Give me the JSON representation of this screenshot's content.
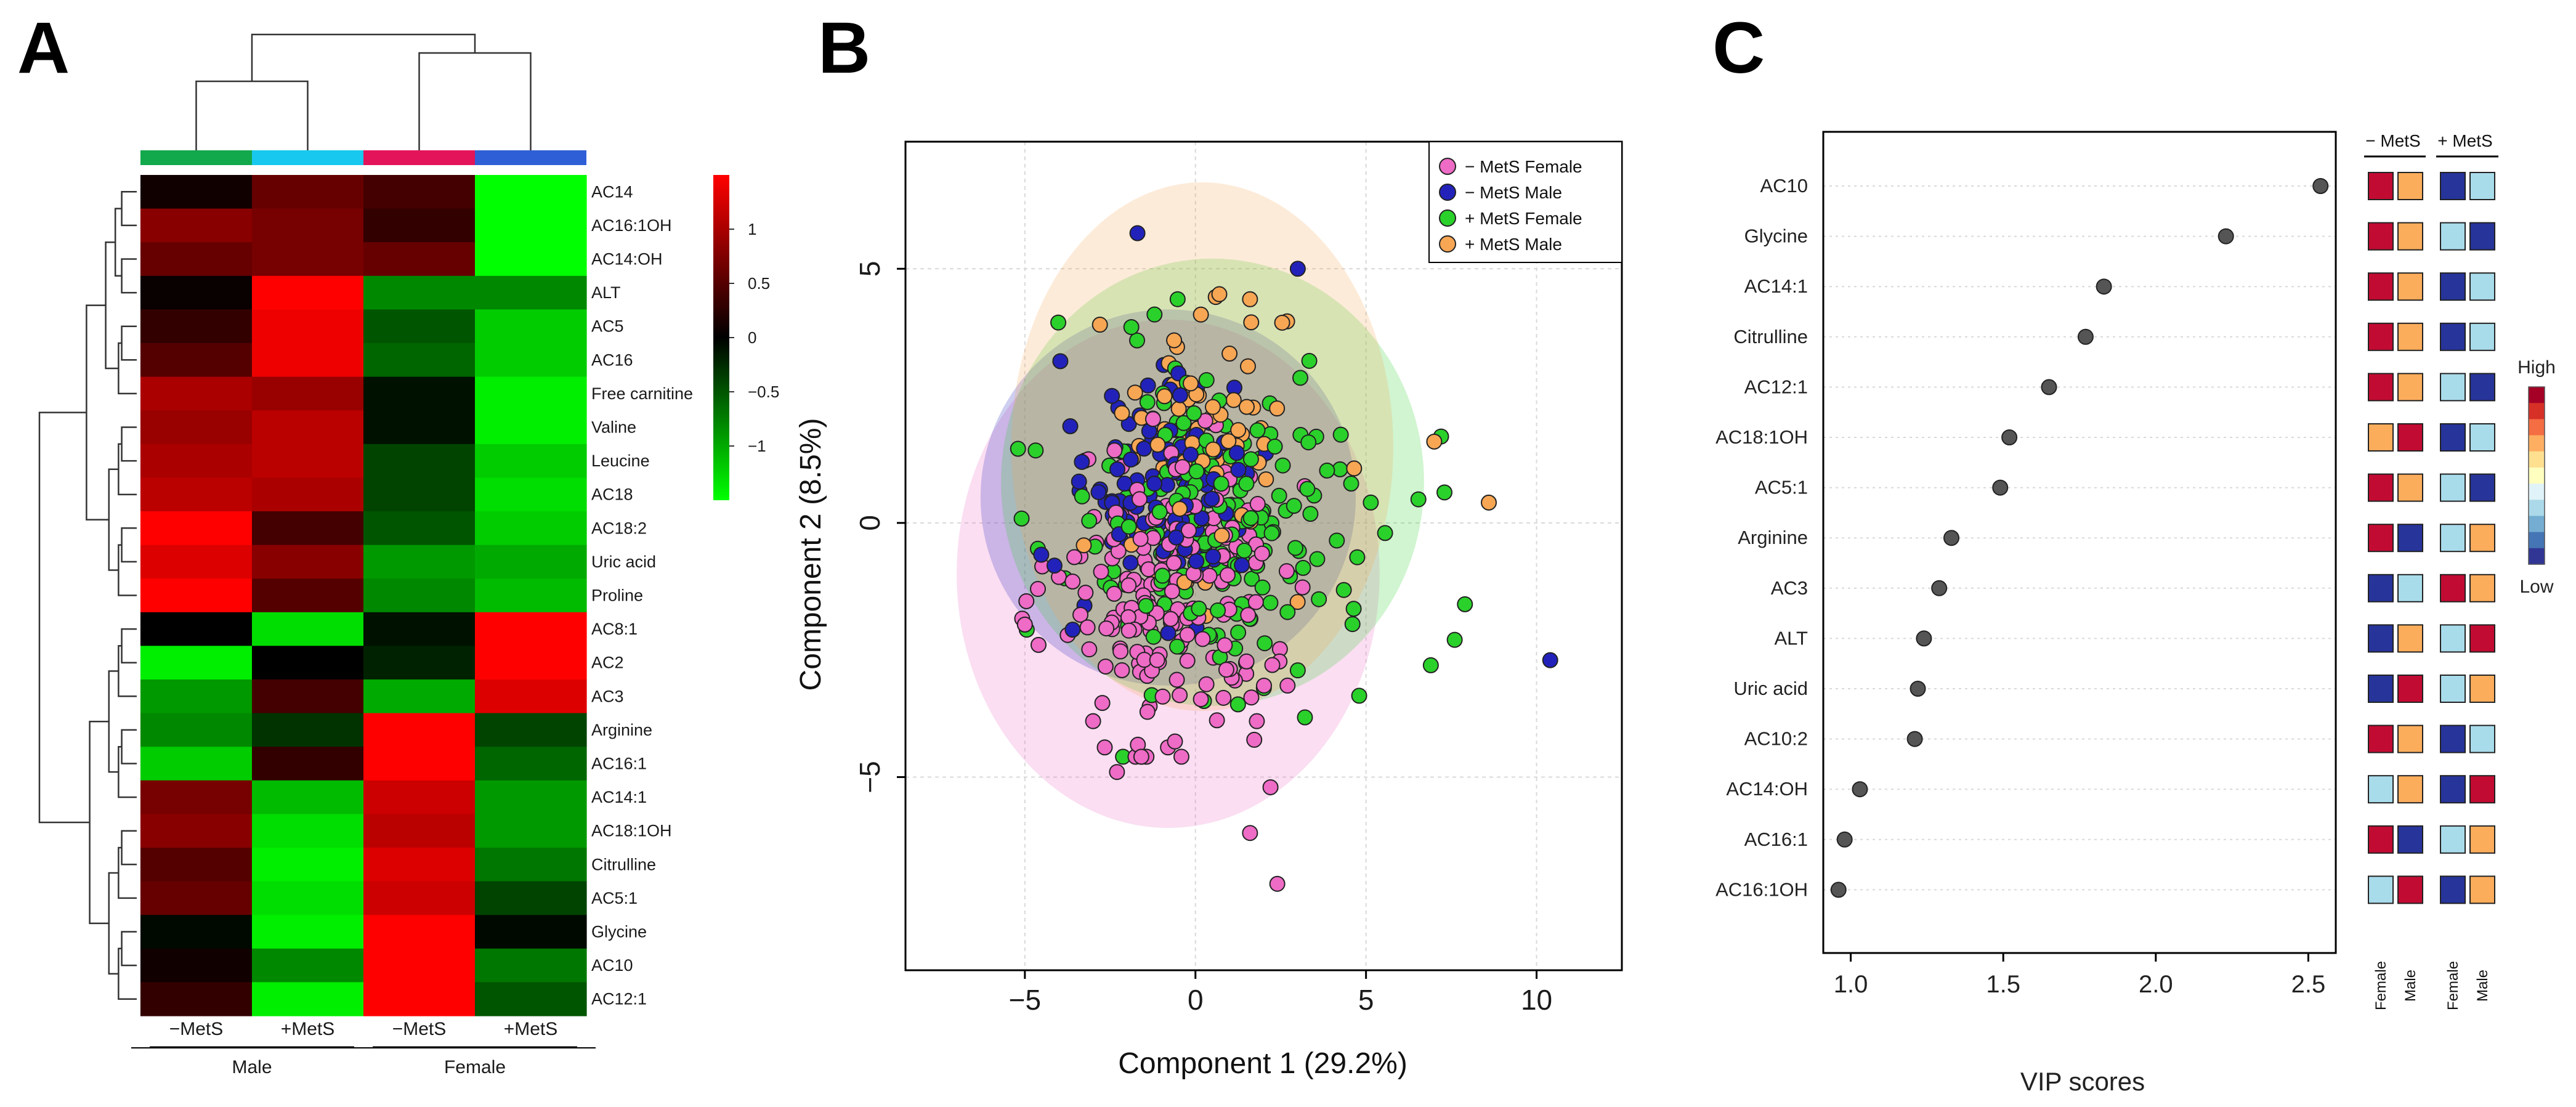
{
  "chart_data": [
    {
      "panel": "A",
      "type": "heatmap",
      "title": "",
      "columns": [
        "−MetS",
        "+MetS",
        "−MetS",
        "+MetS"
      ],
      "column_groups": [
        {
          "label": "Male",
          "span": [
            0,
            1
          ]
        },
        {
          "label": "Female",
          "span": [
            2,
            3
          ]
        }
      ],
      "column_colors": [
        "#12a84c",
        "#18c8ee",
        "#e3145a",
        "#2f5fd6"
      ],
      "rows": [
        "AC14",
        "AC16:1OH",
        "AC14:OH",
        "ALT",
        "AC5",
        "AC16",
        "Free carnitine",
        "Valine",
        "Leucine",
        "AC18",
        "AC18:2",
        "Uric acid",
        "Proline",
        "AC8:1",
        "AC2",
        "AC3",
        "Arginine",
        "AC16:1",
        "AC14:1",
        "AC18:1OH",
        "Citrulline",
        "AC5:1",
        "Glycine",
        "AC10",
        "AC12:1"
      ],
      "values": [
        [
          0.1,
          0.6,
          0.4,
          -1.5
        ],
        [
          0.8,
          0.7,
          0.3,
          -1.5
        ],
        [
          0.6,
          0.7,
          0.6,
          -1.5
        ],
        [
          0.05,
          1.5,
          -0.8,
          -0.8
        ],
        [
          0.3,
          1.4,
          -0.5,
          -1.2
        ],
        [
          0.5,
          1.4,
          -0.6,
          -1.2
        ],
        [
          1.0,
          0.9,
          -0.1,
          -1.4
        ],
        [
          0.9,
          1.1,
          -0.1,
          -1.4
        ],
        [
          1.0,
          1.1,
          -0.4,
          -1.2
        ],
        [
          1.1,
          1.0,
          -0.4,
          -1.3
        ],
        [
          1.5,
          0.4,
          -0.5,
          -1.2
        ],
        [
          1.3,
          0.8,
          -0.9,
          -1.0
        ],
        [
          1.5,
          0.5,
          -0.8,
          -1.1
        ],
        [
          0.0,
          -1.3,
          -0.1,
          1.5
        ],
        [
          -1.4,
          0.0,
          -0.2,
          1.5
        ],
        [
          -0.9,
          0.4,
          -1.0,
          1.3
        ],
        [
          -0.8,
          -0.3,
          1.5,
          -0.4
        ],
        [
          -1.2,
          0.3,
          1.5,
          -0.6
        ],
        [
          0.7,
          -1.1,
          1.2,
          -0.9
        ],
        [
          0.8,
          -1.3,
          1.1,
          -0.9
        ],
        [
          0.5,
          -1.4,
          1.3,
          -0.7
        ],
        [
          0.6,
          -1.3,
          1.2,
          -0.4
        ],
        [
          -0.05,
          -1.4,
          1.5,
          -0.05
        ],
        [
          0.1,
          -0.8,
          1.5,
          -0.7
        ],
        [
          0.3,
          -1.4,
          1.5,
          -0.5
        ]
      ],
      "color_scale": {
        "min": -1.5,
        "max": 1.5,
        "low": "#00ff00",
        "mid": "#000000",
        "high": "#ff0000",
        "ticks": [
          1,
          0.5,
          0,
          -0.5,
          -1
        ],
        "tick_labels": [
          "1",
          "0.5",
          "0",
          "−0.5",
          "−1"
        ]
      }
    },
    {
      "panel": "B",
      "type": "scatter",
      "title": "",
      "xlabel": "Component 1 (29.2%)",
      "ylabel": "Component 2 (8.5%)",
      "xlim": [
        -8.5,
        12.5
      ],
      "ylim": [
        -8.8,
        7.5
      ],
      "xticks": [
        -5,
        0,
        5,
        10
      ],
      "xtick_labels": [
        "−5",
        "0",
        "5",
        "10"
      ],
      "yticks": [
        -5,
        0,
        5
      ],
      "ytick_labels": [
        "−5",
        "0",
        "5"
      ],
      "grid": true,
      "legend_position": "top-right",
      "series": [
        {
          "name": "− MetS Female",
          "color": "#ee6bc6",
          "n": 190,
          "center": [
            -0.8,
            -1.5
          ],
          "spread": [
            1.7,
            1.5
          ],
          "ellipse": {
            "cx": -0.8,
            "cy": -1.0,
            "rx": 6.2,
            "ry": 5.0
          },
          "extra_points": [
            [
              -5.0,
              -2.0
            ],
            [
              -4.6,
              -2.4
            ],
            [
              -2.3,
              -4.9
            ],
            [
              -3.0,
              -3.9
            ],
            [
              1.6,
              -6.1
            ],
            [
              2.2,
              -5.2
            ],
            [
              2.4,
              -7.1
            ],
            [
              1.8,
              -3.9
            ],
            [
              2.7,
              -3.2
            ],
            [
              -0.6,
              -4.3
            ]
          ]
        },
        {
          "name": "− MetS Male",
          "color": "#2222bb",
          "n": 110,
          "center": [
            -1.0,
            0.7
          ],
          "spread": [
            1.4,
            1.2
          ],
          "ellipse": {
            "cx": -0.8,
            "cy": 0.5,
            "rx": 5.5,
            "ry": 3.7
          },
          "extra_points": [
            [
              -1.7,
              5.7
            ],
            [
              3.0,
              5.0
            ],
            [
              10.4,
              -2.7
            ],
            [
              -3.6,
              -2.1
            ]
          ]
        },
        {
          "name": "+ MetS Female",
          "color": "#2bd12b",
          "n": 190,
          "center": [
            0.8,
            0.0
          ],
          "spread": [
            2.3,
            1.6
          ],
          "ellipse": {
            "cx": 0.5,
            "cy": 0.8,
            "rx": 6.2,
            "ry": 4.4
          },
          "extra_points": [
            [
              7.2,
              1.7
            ],
            [
              6.9,
              -2.8
            ],
            [
              7.6,
              -2.3
            ],
            [
              7.9,
              -1.6
            ],
            [
              4.8,
              -3.4
            ],
            [
              3.0,
              -2.9
            ],
            [
              -1.2,
              4.1
            ],
            [
              7.3,
              0.6
            ]
          ]
        },
        {
          "name": "+ MetS Male",
          "color": "#f7a654",
          "n": 70,
          "center": [
            0.2,
            1.6
          ],
          "spread": [
            1.5,
            1.3
          ],
          "ellipse": {
            "cx": 0.2,
            "cy": 1.5,
            "rx": 5.6,
            "ry": 5.2
          },
          "extra_points": [
            [
              8.6,
              0.4
            ],
            [
              -2.8,
              3.9
            ],
            [
              0.7,
              4.5
            ],
            [
              1.6,
              4.4
            ],
            [
              7.0,
              1.6
            ]
          ]
        }
      ]
    },
    {
      "panel": "C",
      "type": "scatter",
      "title": "",
      "xlabel": "VIP scores",
      "ylabel": "",
      "xlim": [
        0.91,
        2.59
      ],
      "xticks": [
        1.0,
        1.5,
        2.0,
        2.5
      ],
      "xtick_labels": [
        "1.0",
        "1.5",
        "2.0",
        "2.5"
      ],
      "categories": [
        "AC10",
        "Glycine",
        "AC14:1",
        "Citrulline",
        "AC12:1",
        "AC18:1OH",
        "AC5:1",
        "Arginine",
        "AC3",
        "ALT",
        "Uric acid",
        "AC10:2",
        "AC14:OH",
        "AC16:1",
        "AC16:1OH"
      ],
      "values": [
        2.54,
        2.23,
        1.83,
        1.77,
        1.65,
        1.52,
        1.49,
        1.33,
        1.29,
        1.24,
        1.22,
        1.21,
        1.03,
        0.98,
        0.96
      ],
      "grid": true,
      "group_headers": [
        "− MetS",
        "+ MetS"
      ],
      "column_labels": [
        "Female",
        "Male",
        "Female",
        "Male"
      ],
      "relative_levels": [
        [
          4,
          3,
          0,
          1
        ],
        [
          4,
          3,
          1,
          0
        ],
        [
          4,
          3,
          0,
          1
        ],
        [
          4,
          3,
          0,
          1
        ],
        [
          4,
          3,
          1,
          0
        ],
        [
          3,
          4,
          0,
          1
        ],
        [
          4,
          3,
          1,
          0
        ],
        [
          4,
          0,
          1,
          3
        ],
        [
          0,
          1,
          4,
          3
        ],
        [
          0,
          3,
          1,
          4
        ],
        [
          0,
          4,
          1,
          3
        ],
        [
          4,
          3,
          0,
          1
        ],
        [
          1,
          3,
          0,
          4
        ],
        [
          4,
          0,
          1,
          3
        ],
        [
          1,
          4,
          0,
          3
        ]
      ],
      "level_colors": [
        "#27349a",
        "#a9dceb",
        "#fee08b",
        "#fbad5c",
        "#c20b32"
      ],
      "color_key": {
        "high_label": "High",
        "low_label": "Low",
        "colors": [
          "#a50026",
          "#d73027",
          "#f46d43",
          "#fdae61",
          "#fee090",
          "#ffffbf",
          "#e0f3f8",
          "#abd9e9",
          "#74add1",
          "#4575b4",
          "#313695"
        ]
      }
    }
  ],
  "panel_labels": [
    "A",
    "B",
    "C"
  ],
  "axis_colors": {
    "frame": "#000000",
    "grid": "#d9d9d9",
    "text": "#1a1a1a"
  }
}
